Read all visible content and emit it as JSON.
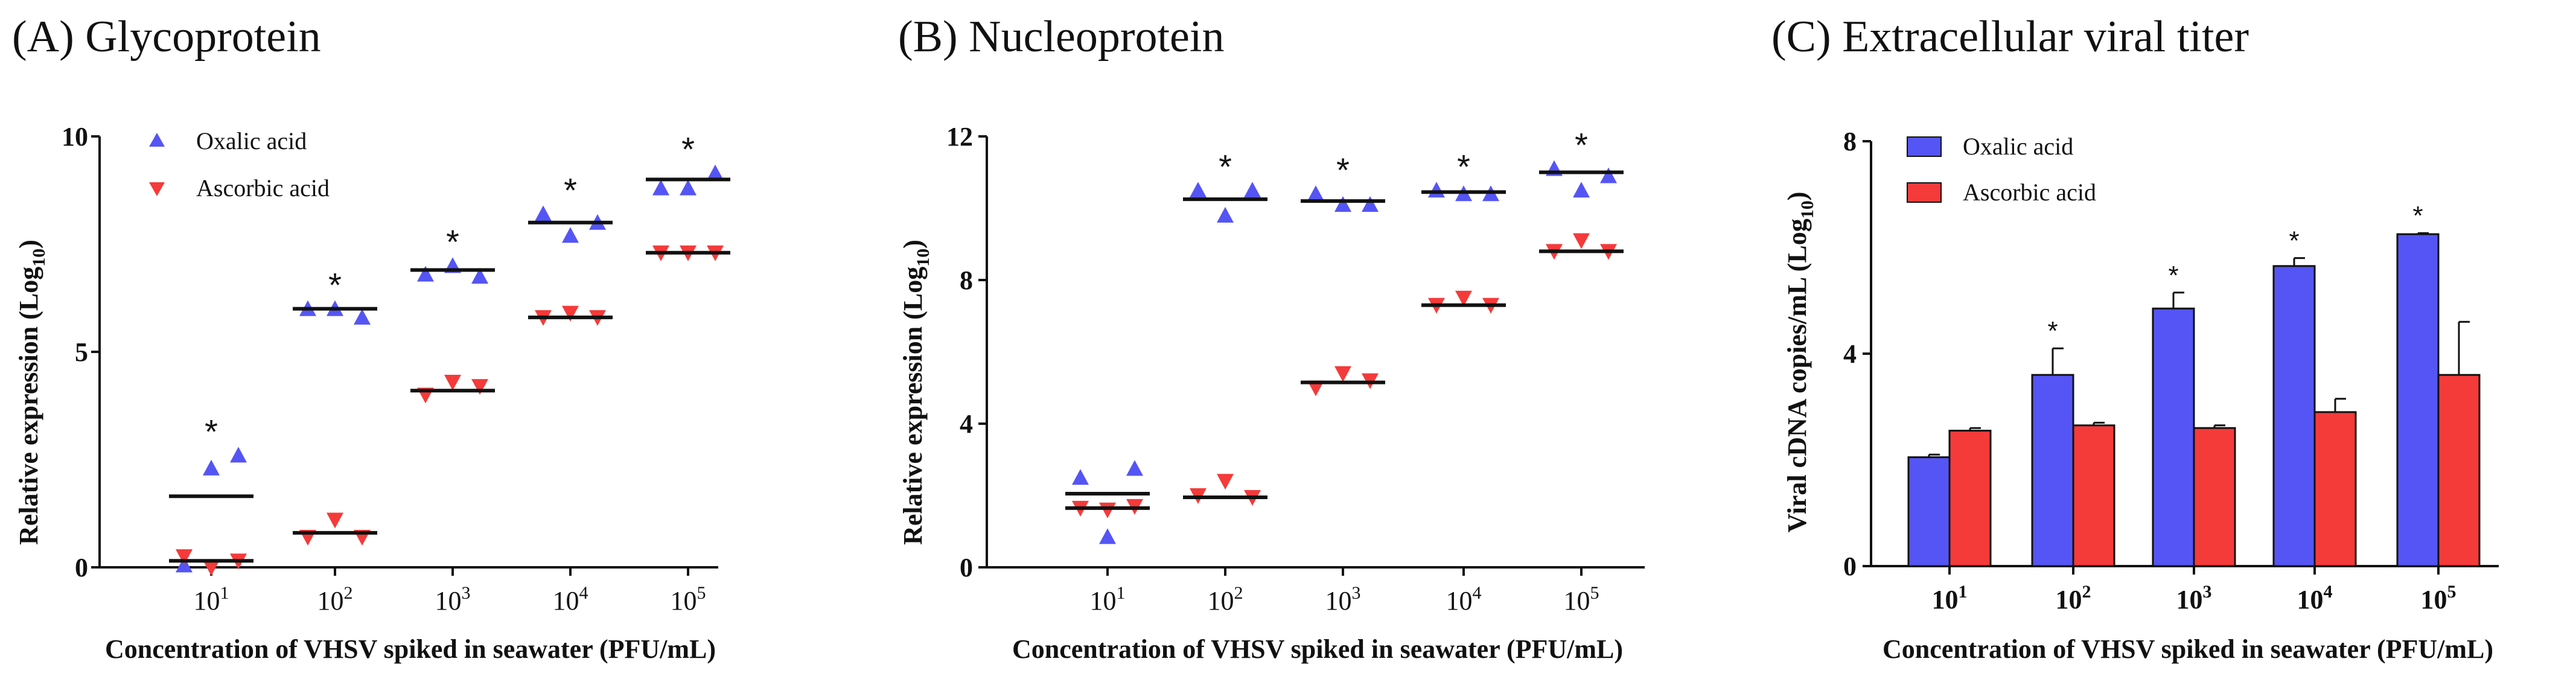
{
  "colors": {
    "oxalic": "#5555f5",
    "ascorbic": "#f53a3a",
    "axis": "#111111"
  },
  "chart_data": [
    {
      "type": "scatter",
      "title": "(A) Glycoprotein",
      "ylabel": "Relative expression (Log",
      "ylabel_sub": "10",
      "ylabel_end": ")",
      "xlabel": "Concentration of VHSV spiked in seawater (PFU/mL)",
      "categories": [
        "10^1",
        "10^2",
        "10^3",
        "10^4",
        "10^5"
      ],
      "ylim": [
        0,
        10
      ],
      "yticks": [
        0,
        5,
        10
      ],
      "legend": [
        "Oxalic acid",
        "Ascorbic acid"
      ],
      "significance": [
        "*",
        "*",
        "*",
        "*",
        "*"
      ],
      "series": [
        {
          "name": "Oxalic acid",
          "marker": "triangle-up",
          "points": [
            [
              0.05,
              2.3,
              2.6
            ],
            [
              6.0,
              6.0,
              5.8
            ],
            [
              6.8,
              7.0,
              6.75
            ],
            [
              8.2,
              7.7,
              8.0
            ],
            [
              8.8,
              8.8,
              9.15
            ]
          ],
          "means": [
            1.65,
            6.0,
            6.9,
            8.0,
            9.0
          ]
        },
        {
          "name": "Ascorbic acid",
          "marker": "triangle-down",
          "points": [
            [
              0.25,
              0.0,
              0.15
            ],
            [
              0.7,
              1.1,
              0.7
            ],
            [
              4.0,
              4.3,
              4.2
            ],
            [
              5.8,
              5.9,
              5.8
            ],
            [
              7.3,
              7.3,
              7.3
            ]
          ],
          "means": [
            0.15,
            0.8,
            4.1,
            5.8,
            7.3
          ]
        }
      ]
    },
    {
      "type": "scatter",
      "title": "(B) Nucleoprotein",
      "ylabel": "Relative expression (Log",
      "ylabel_sub": "10",
      "ylabel_end": ")",
      "xlabel": "Concentration of VHSV spiked in seawater (PFU/mL)",
      "categories": [
        "10^1",
        "10^2",
        "10^3",
        "10^4",
        "10^5"
      ],
      "ylim": [
        0,
        12
      ],
      "yticks": [
        0,
        4,
        8,
        12
      ],
      "significance": [
        "",
        "*",
        "*",
        "*",
        "*"
      ],
      "series": [
        {
          "name": "Oxalic acid",
          "marker": "triangle-up",
          "points": [
            [
              2.5,
              0.85,
              2.75
            ],
            [
              10.5,
              9.8,
              10.5
            ],
            [
              10.4,
              10.1,
              10.1
            ],
            [
              10.5,
              10.4,
              10.4
            ],
            [
              11.1,
              10.5,
              10.9
            ]
          ],
          "means": [
            2.05,
            10.25,
            10.2,
            10.45,
            11.0
          ]
        },
        {
          "name": "Ascorbic acid",
          "marker": "triangle-down",
          "points": [
            [
              1.65,
              1.6,
              1.7
            ],
            [
              2.0,
              2.4,
              1.95
            ],
            [
              5.0,
              5.4,
              5.2
            ],
            [
              7.3,
              7.5,
              7.3
            ],
            [
              8.8,
              9.1,
              8.8
            ]
          ],
          "means": [
            1.65,
            1.95,
            5.15,
            7.3,
            8.8
          ]
        }
      ]
    },
    {
      "type": "bar",
      "title": "(C) Extracellular viral titer",
      "ylabel": "Viral cDNA copies/mL (Log",
      "ylabel_sub": "10",
      "ylabel_end": ")",
      "xlabel": "Concentration of VHSV spiked in seawater (PFU/mL)",
      "categories": [
        "10^1",
        "10^2",
        "10^3",
        "10^4",
        "10^5"
      ],
      "ylim": [
        0,
        8
      ],
      "yticks": [
        0,
        4,
        8
      ],
      "legend": [
        "Oxalic acid",
        "Ascorbic acid"
      ],
      "significance": [
        "",
        "*",
        "*",
        "*",
        "*"
      ],
      "series": [
        {
          "name": "Oxalic acid",
          "values": [
            2.05,
            3.6,
            4.85,
            5.65,
            6.25
          ],
          "errors": [
            0.05,
            0.5,
            0.3,
            0.15,
            0.02
          ]
        },
        {
          "name": "Ascorbic acid",
          "values": [
            2.55,
            2.65,
            2.6,
            2.9,
            3.6
          ],
          "errors": [
            0.05,
            0.05,
            0.05,
            0.25,
            1.0
          ]
        }
      ]
    }
  ]
}
